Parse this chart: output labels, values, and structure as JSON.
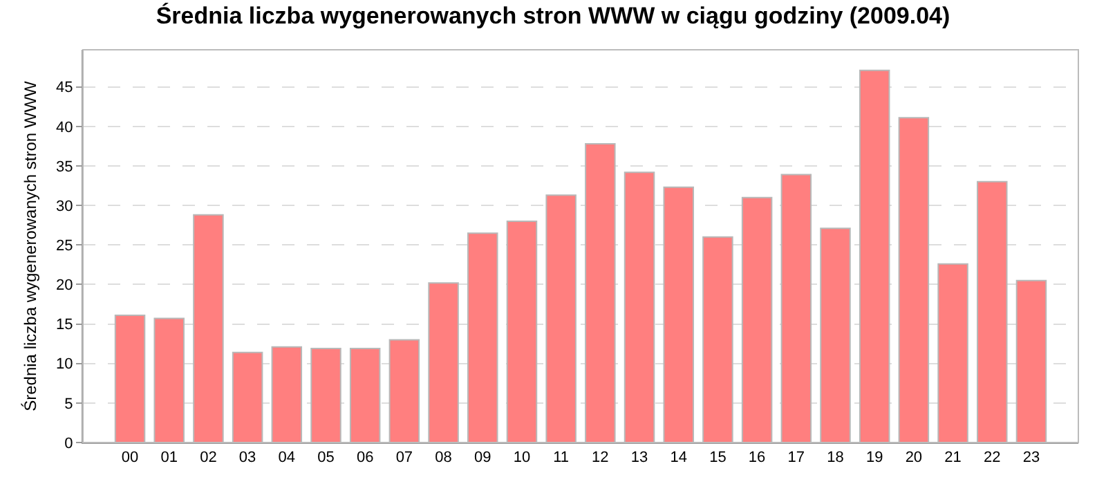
{
  "chart_data": {
    "type": "bar",
    "title": "Średnia liczba wygenerowanych stron WWW w ciągu godziny (2009.04)",
    "ylabel": "Średnia liczba wygenerowanych stron WWW",
    "categories": [
      "00",
      "01",
      "02",
      "03",
      "04",
      "05",
      "06",
      "07",
      "08",
      "09",
      "10",
      "11",
      "12",
      "13",
      "14",
      "15",
      "16",
      "17",
      "18",
      "19",
      "20",
      "21",
      "22",
      "23"
    ],
    "values": [
      16.1,
      15.7,
      28.8,
      11.4,
      12.1,
      11.9,
      11.9,
      13.0,
      20.2,
      26.5,
      28.0,
      31.3,
      37.8,
      34.2,
      32.3,
      26.0,
      31.0,
      33.9,
      27.1,
      47.1,
      41.1,
      22.6,
      33.0,
      20.5
    ],
    "color": "#ff7f7f",
    "ylim": [
      0,
      49.7
    ],
    "yticks": [
      0,
      5,
      10,
      15,
      20,
      25,
      30,
      35,
      40,
      45
    ],
    "grid": "y"
  }
}
